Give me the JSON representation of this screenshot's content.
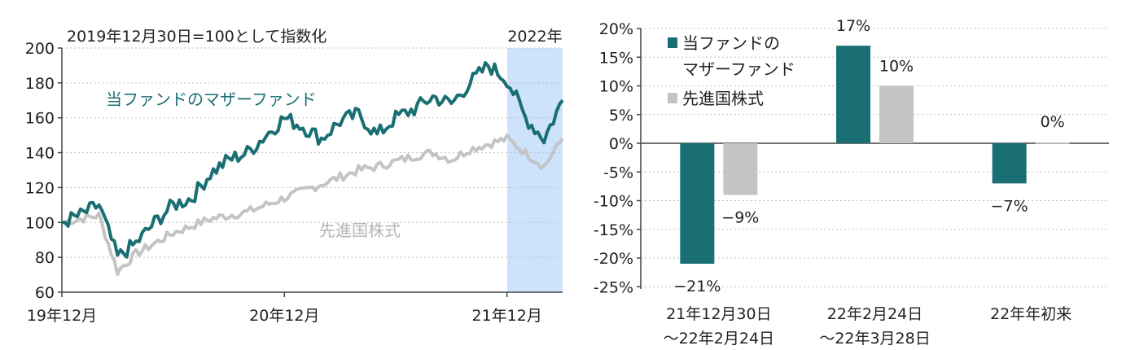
{
  "colors": {
    "fund": "#196f73",
    "stock": "#c4c4c4",
    "highlight": "#cde3fb",
    "axis": "#444444",
    "grid": "#bfbfbf"
  },
  "chart_data": [
    {
      "type": "line",
      "note": "2019年12月30日=100として指数化",
      "highlight_label": "2022年",
      "ylim": [
        60,
        200
      ],
      "yticks": [
        "60",
        "80",
        "100",
        "120",
        "140",
        "160",
        "180",
        "200"
      ],
      "xticks": [
        "19年12月",
        "20年12月",
        "21年12月"
      ],
      "series": [
        {
          "name": "当ファンドのマザーファンド",
          "x": [
            "2019-12",
            "2020-01",
            "2020-02",
            "2020-03",
            "2020-04",
            "2020-05",
            "2020-06",
            "2020-07",
            "2020-08",
            "2020-09",
            "2020-10",
            "2020-11",
            "2020-12",
            "2021-01",
            "2021-02",
            "2021-03",
            "2021-04",
            "2021-05",
            "2021-06",
            "2021-07",
            "2021-08",
            "2021-09",
            "2021-10",
            "2021-11",
            "2021-12",
            "2022-01",
            "2022-02",
            "2022-03"
          ],
          "values": [
            100,
            104,
            110,
            80,
            88,
            100,
            110,
            114,
            128,
            136,
            140,
            150,
            160,
            155,
            148,
            158,
            162,
            150,
            160,
            165,
            172,
            168,
            180,
            190,
            182,
            160,
            148,
            170
          ]
        },
        {
          "name": "先進国株式",
          "x": [
            "2019-12",
            "2020-01",
            "2020-02",
            "2020-03",
            "2020-04",
            "2020-05",
            "2020-06",
            "2020-07",
            "2020-08",
            "2020-09",
            "2020-10",
            "2020-11",
            "2020-12",
            "2021-01",
            "2021-02",
            "2021-03",
            "2021-04",
            "2021-05",
            "2021-06",
            "2021-07",
            "2021-08",
            "2021-09",
            "2021-10",
            "2021-11",
            "2021-12",
            "2022-01",
            "2022-02",
            "2022-03"
          ],
          "values": [
            100,
            102,
            104,
            72,
            82,
            88,
            94,
            98,
            102,
            104,
            106,
            110,
            114,
            118,
            122,
            126,
            130,
            132,
            135,
            138,
            140,
            136,
            142,
            145,
            148,
            140,
            132,
            148
          ]
        }
      ]
    },
    {
      "type": "bar",
      "categories": [
        {
          "line1": "21年12月30日",
          "line2": "～22年2月24日"
        },
        {
          "line1": "22年2月24日",
          "line2": "～22年3月28日"
        },
        {
          "line1": "22年年初来",
          "line2": ""
        }
      ],
      "ylim": [
        -25,
        20
      ],
      "yticks": [
        "20%",
        "15%",
        "10%",
        "5%",
        "0%",
        "-5%",
        "-10%",
        "-15%",
        "-20%",
        "-25%"
      ],
      "series": [
        {
          "name": "当ファンドの マザーファンド",
          "legend_line1": "当ファンドの",
          "legend_line2": "マザーファンド",
          "values": [
            -21,
            17,
            -7
          ],
          "labels": [
            "−21%",
            "17%",
            "−7%"
          ]
        },
        {
          "name": "先進国株式",
          "legend_line1": "先進国株式",
          "values": [
            -9,
            10,
            0
          ],
          "labels": [
            "−9%",
            "10%",
            "0%"
          ]
        }
      ]
    }
  ]
}
